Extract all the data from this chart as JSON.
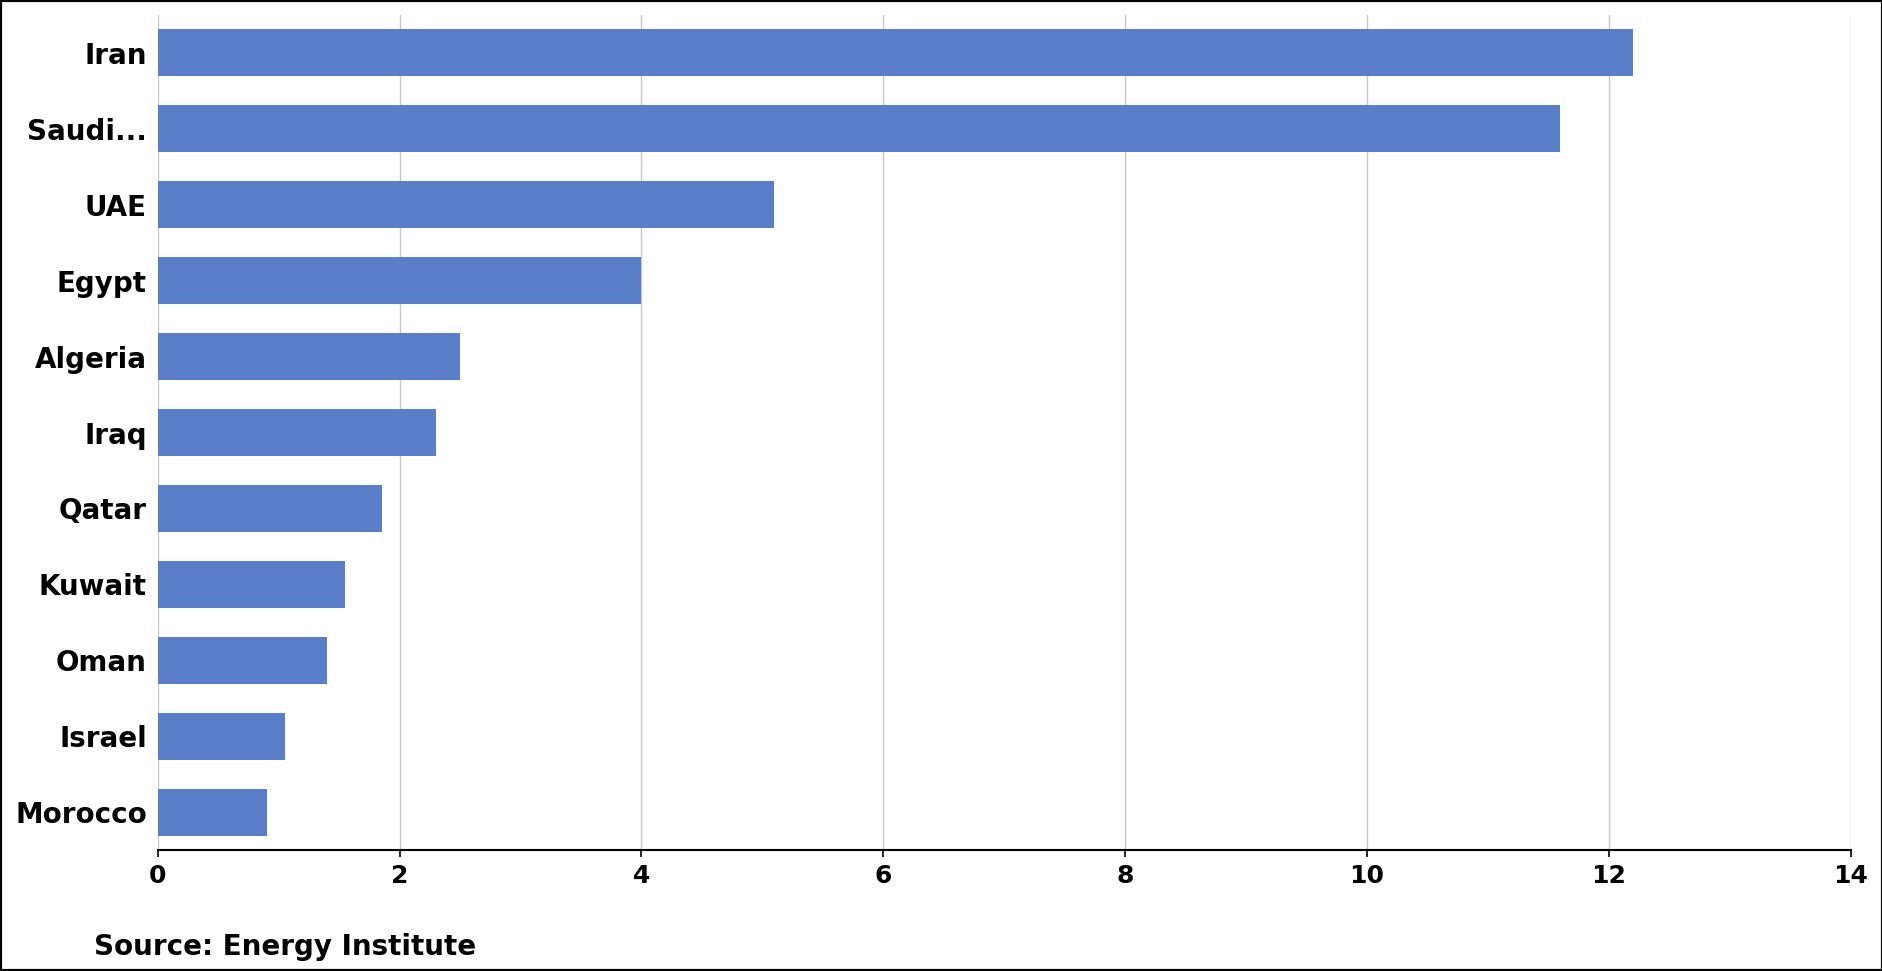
{
  "categories": [
    "Iran",
    "Saudi...",
    "UAE",
    "Egypt",
    "Algeria",
    "Iraq",
    "Qatar",
    "Kuwait",
    "Oman",
    "Israel",
    "Morocco"
  ],
  "values": [
    12.2,
    11.6,
    5.1,
    4.0,
    2.5,
    2.3,
    1.85,
    1.55,
    1.4,
    1.05,
    0.9
  ],
  "bar_color": "#5b7ec9",
  "xlim": [
    0,
    14
  ],
  "xticks": [
    0,
    2,
    4,
    6,
    8,
    10,
    12,
    14
  ],
  "source_text": "Source: Energy Institute",
  "background_color": "#ffffff",
  "bar_height": 0.62,
  "grid_color": "#c8c8c8",
  "tick_fontsize": 18,
  "label_fontsize": 20,
  "source_fontsize": 20
}
